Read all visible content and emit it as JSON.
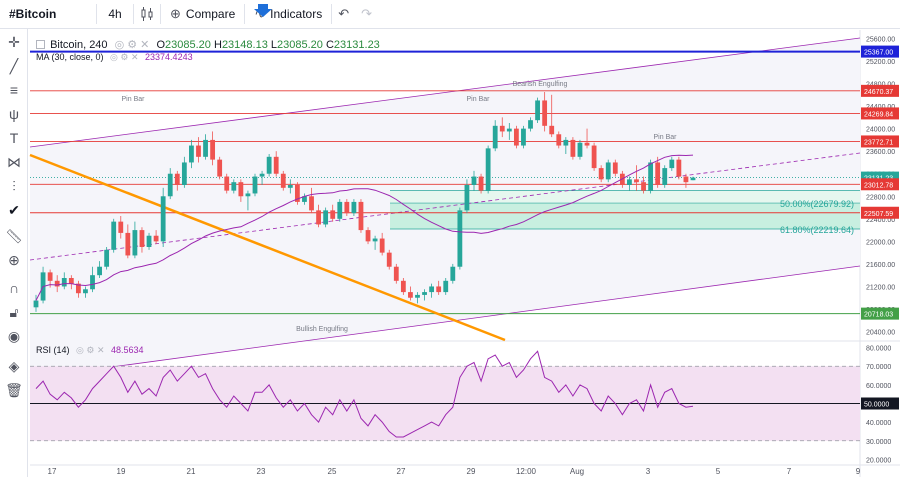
{
  "toolbar": {
    "symbol": "#Bitcoin",
    "interval": "4h",
    "compare_label": "Compare",
    "indicators_label": "Indicators"
  },
  "legend": {
    "title": "Bitcoin, 240",
    "open_label": "O",
    "open": "23085.20",
    "high_label": "H",
    "high": "23148.13",
    "low_label": "L",
    "low": "23085.20",
    "close_label": "C",
    "close": "23131.23",
    "ma_label": "MA (30, close, 0)",
    "ma_value": "23374.4243",
    "rsi_label": "RSI (14)",
    "rsi_value": "48.5634"
  },
  "sidebar_icons": [
    "crosshair-icon",
    "trendline-icon",
    "lines-icon",
    "pitchfork-icon",
    "text-icon",
    "pattern-icon",
    "measure-icon",
    "check-icon",
    "ruler-icon",
    "zoom-icon",
    "magnet-icon",
    "lock-icon",
    "eye-icon",
    "layers-icon",
    "trash-icon"
  ],
  "colors": {
    "up": "#26a69a",
    "down": "#ef5350",
    "ma": "#9c27b0",
    "resistance": "#e53935",
    "support": "#43a047",
    "blue_line": "#1e22d8",
    "orange": "#ff9800",
    "channel": "#9c27b0",
    "fib_fill": "#c8efe0",
    "rsi_fill": "#f3e0f2"
  },
  "chart_data": {
    "type": "candlestick",
    "price_axis": {
      "ticks": [
        20400,
        20800,
        21200,
        21600,
        22000,
        22400,
        22800,
        23200,
        23600,
        24000,
        24400,
        24800,
        25200,
        25600
      ],
      "range": [
        20250,
        25750
      ]
    },
    "x_axis": {
      "labels": [
        "17",
        "19",
        "21",
        "23",
        "25",
        "27",
        "29",
        "12:00",
        "Aug",
        "3",
        "5",
        "7",
        "9"
      ]
    },
    "price_levels": [
      {
        "value": 25367.0,
        "label": "25367.00",
        "color": "#1e22d8"
      },
      {
        "value": 24670.37,
        "label": "24670.37",
        "color": "#e53935"
      },
      {
        "value": 24269.84,
        "label": "24269.84",
        "color": "#e53935"
      },
      {
        "value": 23772.71,
        "label": "23772.71",
        "color": "#e53935"
      },
      {
        "value": 23131.23,
        "label": "23131.23",
        "color": "#26a69a"
      },
      {
        "value": 23012.78,
        "label": "23012.78",
        "color": "#e53935"
      },
      {
        "value": 22507.59,
        "label": "22507.59",
        "color": "#e53935"
      },
      {
        "value": 20718.03,
        "label": "20718.03",
        "color": "#43a047"
      }
    ],
    "fibonacci": [
      {
        "label": "50.00%(22679.92)",
        "value": 22679.92
      },
      {
        "label": "61.80%(22219.64)",
        "value": 22219.64
      }
    ],
    "annotations": [
      "Pin Bar",
      "Pin Bar",
      "Bearish Engulfing",
      "Pin Bar",
      "Bullish Engulfing"
    ],
    "candles": [
      {
        "o": 20830,
        "h": 21050,
        "l": 20750,
        "c": 20950
      },
      {
        "o": 20950,
        "h": 21550,
        "l": 20900,
        "c": 21450
      },
      {
        "o": 21450,
        "h": 21500,
        "l": 21180,
        "c": 21300
      },
      {
        "o": 21300,
        "h": 21400,
        "l": 21100,
        "c": 21200
      },
      {
        "o": 21200,
        "h": 21450,
        "l": 21150,
        "c": 21350
      },
      {
        "o": 21350,
        "h": 21400,
        "l": 21150,
        "c": 21250
      },
      {
        "o": 21250,
        "h": 21300,
        "l": 21000,
        "c": 21080
      },
      {
        "o": 21080,
        "h": 21200,
        "l": 21000,
        "c": 21150
      },
      {
        "o": 21150,
        "h": 21550,
        "l": 21100,
        "c": 21400
      },
      {
        "o": 21400,
        "h": 21650,
        "l": 21350,
        "c": 21550
      },
      {
        "o": 21550,
        "h": 21900,
        "l": 21500,
        "c": 21850
      },
      {
        "o": 21850,
        "h": 22400,
        "l": 21800,
        "c": 22350
      },
      {
        "o": 22350,
        "h": 22450,
        "l": 22050,
        "c": 22150
      },
      {
        "o": 22150,
        "h": 22300,
        "l": 21700,
        "c": 21750
      },
      {
        "o": 21750,
        "h": 22350,
        "l": 21700,
        "c": 22200
      },
      {
        "o": 22200,
        "h": 22250,
        "l": 21800,
        "c": 21900
      },
      {
        "o": 21900,
        "h": 22150,
        "l": 21850,
        "c": 22100
      },
      {
        "o": 22100,
        "h": 22200,
        "l": 21950,
        "c": 22000
      },
      {
        "o": 22000,
        "h": 22950,
        "l": 21900,
        "c": 22800
      },
      {
        "o": 22800,
        "h": 23300,
        "l": 22750,
        "c": 23200
      },
      {
        "o": 23200,
        "h": 23250,
        "l": 22900,
        "c": 23000
      },
      {
        "o": 23000,
        "h": 23500,
        "l": 22950,
        "c": 23400
      },
      {
        "o": 23400,
        "h": 23800,
        "l": 23300,
        "c": 23700
      },
      {
        "o": 23700,
        "h": 23850,
        "l": 23400,
        "c": 23500
      },
      {
        "o": 23500,
        "h": 23900,
        "l": 23450,
        "c": 23800
      },
      {
        "o": 23800,
        "h": 23950,
        "l": 23350,
        "c": 23450
      },
      {
        "o": 23450,
        "h": 23500,
        "l": 23100,
        "c": 23150
      },
      {
        "o": 23150,
        "h": 23200,
        "l": 22850,
        "c": 22900
      },
      {
        "o": 22900,
        "h": 23100,
        "l": 22850,
        "c": 23050
      },
      {
        "o": 23050,
        "h": 23100,
        "l": 22700,
        "c": 22800
      },
      {
        "o": 22800,
        "h": 22900,
        "l": 22550,
        "c": 22850
      },
      {
        "o": 22850,
        "h": 23200,
        "l": 22800,
        "c": 23150
      },
      {
        "o": 23150,
        "h": 23250,
        "l": 23000,
        "c": 23200
      },
      {
        "o": 23200,
        "h": 23550,
        "l": 23150,
        "c": 23500
      },
      {
        "o": 23500,
        "h": 23600,
        "l": 23150,
        "c": 23200
      },
      {
        "o": 23200,
        "h": 23250,
        "l": 22900,
        "c": 22950
      },
      {
        "o": 22950,
        "h": 23100,
        "l": 22850,
        "c": 23000
      },
      {
        "o": 23000,
        "h": 23050,
        "l": 22650,
        "c": 22700
      },
      {
        "o": 22700,
        "h": 22850,
        "l": 22650,
        "c": 22800
      },
      {
        "o": 22800,
        "h": 22950,
        "l": 22500,
        "c": 22550
      },
      {
        "o": 22550,
        "h": 22650,
        "l": 22250,
        "c": 22300
      },
      {
        "o": 22300,
        "h": 22600,
        "l": 22250,
        "c": 22550
      },
      {
        "o": 22550,
        "h": 22650,
        "l": 22350,
        "c": 22400
      },
      {
        "o": 22400,
        "h": 22750,
        "l": 22350,
        "c": 22700
      },
      {
        "o": 22700,
        "h": 22750,
        "l": 22450,
        "c": 22500
      },
      {
        "o": 22500,
        "h": 22750,
        "l": 22450,
        "c": 22700
      },
      {
        "o": 22700,
        "h": 22750,
        "l": 22150,
        "c": 22200
      },
      {
        "o": 22200,
        "h": 22250,
        "l": 21950,
        "c": 22000
      },
      {
        "o": 22000,
        "h": 22100,
        "l": 21850,
        "c": 22050
      },
      {
        "o": 22050,
        "h": 22150,
        "l": 21750,
        "c": 21800
      },
      {
        "o": 21800,
        "h": 21850,
        "l": 21500,
        "c": 21550
      },
      {
        "o": 21550,
        "h": 21600,
        "l": 21250,
        "c": 21300
      },
      {
        "o": 21300,
        "h": 21350,
        "l": 21050,
        "c": 21100
      },
      {
        "o": 21100,
        "h": 21200,
        "l": 20950,
        "c": 21000
      },
      {
        "o": 21000,
        "h": 21100,
        "l": 20900,
        "c": 21050
      },
      {
        "o": 21050,
        "h": 21150,
        "l": 20950,
        "c": 21100
      },
      {
        "o": 21100,
        "h": 21250,
        "l": 21000,
        "c": 21200
      },
      {
        "o": 21200,
        "h": 21300,
        "l": 21050,
        "c": 21100
      },
      {
        "o": 21100,
        "h": 21350,
        "l": 21050,
        "c": 21300
      },
      {
        "o": 21300,
        "h": 21600,
        "l": 21250,
        "c": 21550
      },
      {
        "o": 21550,
        "h": 22600,
        "l": 21500,
        "c": 22550
      },
      {
        "o": 22550,
        "h": 23100,
        "l": 22500,
        "c": 23000
      },
      {
        "o": 23000,
        "h": 23250,
        "l": 22900,
        "c": 23150
      },
      {
        "o": 23150,
        "h": 23200,
        "l": 22850,
        "c": 22900
      },
      {
        "o": 22900,
        "h": 23700,
        "l": 22850,
        "c": 23650
      },
      {
        "o": 23650,
        "h": 24150,
        "l": 23600,
        "c": 24050
      },
      {
        "o": 24050,
        "h": 24200,
        "l": 23850,
        "c": 23950
      },
      {
        "o": 23950,
        "h": 24100,
        "l": 23800,
        "c": 24000
      },
      {
        "o": 24000,
        "h": 24050,
        "l": 23650,
        "c": 23700
      },
      {
        "o": 23700,
        "h": 24050,
        "l": 23650,
        "c": 24000
      },
      {
        "o": 24000,
        "h": 24200,
        "l": 23950,
        "c": 24150
      },
      {
        "o": 24150,
        "h": 24550,
        "l": 24100,
        "c": 24500
      },
      {
        "o": 24500,
        "h": 24650,
        "l": 23950,
        "c": 24050
      },
      {
        "o": 24050,
        "h": 24600,
        "l": 23850,
        "c": 23900
      },
      {
        "o": 23900,
        "h": 23950,
        "l": 23650,
        "c": 23700
      },
      {
        "o": 23700,
        "h": 23850,
        "l": 23550,
        "c": 23800
      },
      {
        "o": 23800,
        "h": 23850,
        "l": 23450,
        "c": 23500
      },
      {
        "o": 23500,
        "h": 23800,
        "l": 23450,
        "c": 23750
      },
      {
        "o": 23750,
        "h": 24000,
        "l": 23650,
        "c": 23700
      },
      {
        "o": 23700,
        "h": 23750,
        "l": 23250,
        "c": 23300
      },
      {
        "o": 23300,
        "h": 23350,
        "l": 23050,
        "c": 23100
      },
      {
        "o": 23100,
        "h": 23450,
        "l": 23050,
        "c": 23400
      },
      {
        "o": 23400,
        "h": 23450,
        "l": 23150,
        "c": 23200
      },
      {
        "o": 23200,
        "h": 23250,
        "l": 22950,
        "c": 23000
      },
      {
        "o": 23000,
        "h": 23150,
        "l": 22900,
        "c": 23100
      },
      {
        "o": 23100,
        "h": 23350,
        "l": 22900,
        "c": 23050
      },
      {
        "o": 23050,
        "h": 23150,
        "l": 22850,
        "c": 22900
      },
      {
        "o": 22900,
        "h": 23450,
        "l": 22850,
        "c": 23400
      },
      {
        "o": 23400,
        "h": 23500,
        "l": 22950,
        "c": 23000
      },
      {
        "o": 23000,
        "h": 23350,
        "l": 22950,
        "c": 23300
      },
      {
        "o": 23300,
        "h": 23500,
        "l": 23250,
        "c": 23450
      },
      {
        "o": 23450,
        "h": 23500,
        "l": 23100,
        "c": 23150
      },
      {
        "o": 23150,
        "h": 23200,
        "l": 22950,
        "c": 23050
      },
      {
        "o": 23085.2,
        "h": 23148.13,
        "l": 23085.2,
        "c": 23131.23
      }
    ],
    "rsi": {
      "ticks": [
        20,
        30,
        40,
        50,
        60,
        70,
        80
      ],
      "range": [
        17,
        83
      ],
      "bands": [
        30,
        70
      ],
      "values": [
        58,
        62,
        55,
        52,
        56,
        53,
        48,
        52,
        58,
        62,
        66,
        70,
        64,
        56,
        62,
        55,
        58,
        54,
        64,
        68,
        62,
        66,
        70,
        64,
        66,
        58,
        52,
        48,
        54,
        50,
        46,
        56,
        56,
        60,
        53,
        48,
        52,
        46,
        50,
        44,
        40,
        48,
        44,
        52,
        46,
        52,
        42,
        38,
        44,
        40,
        35,
        32,
        32,
        34,
        36,
        38,
        40,
        38,
        44,
        48,
        64,
        70,
        72,
        62,
        74,
        76,
        70,
        72,
        64,
        68,
        74,
        78,
        64,
        62,
        56,
        60,
        54,
        60,
        58,
        50,
        46,
        54,
        50,
        44,
        50,
        52,
        46,
        60,
        48,
        56,
        58,
        50,
        48,
        48.5634
      ]
    }
  }
}
